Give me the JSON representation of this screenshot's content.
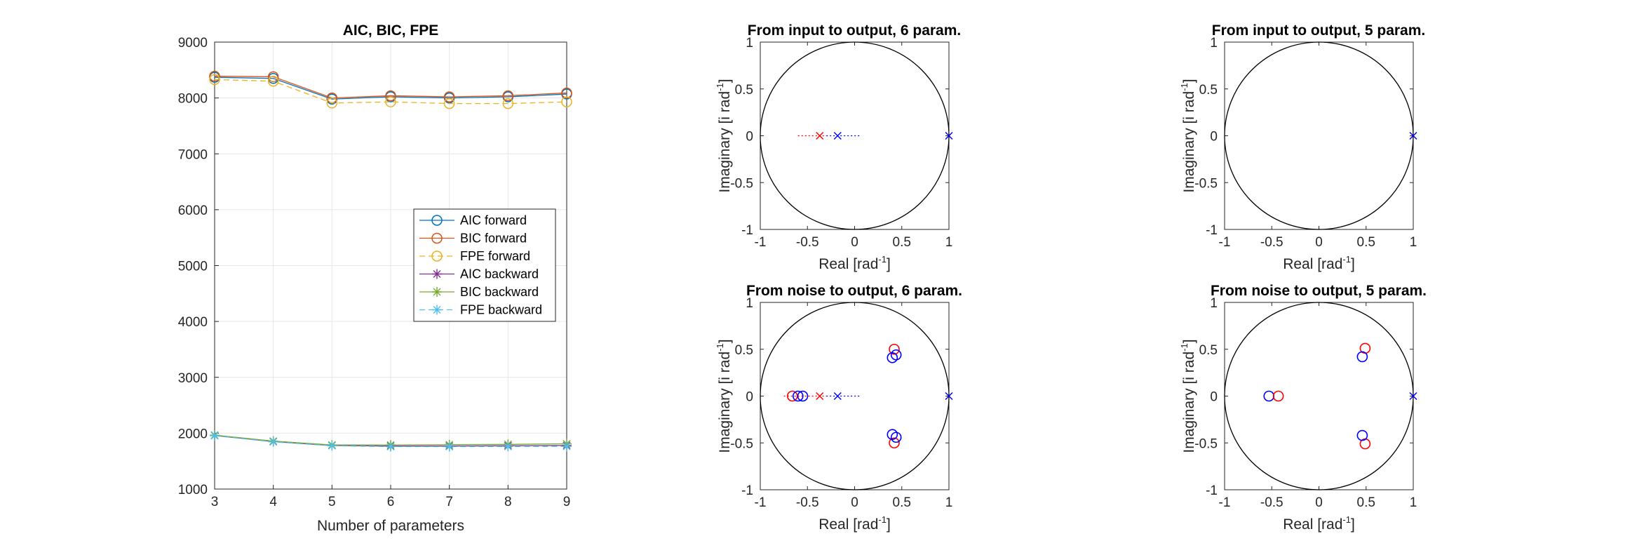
{
  "chart_data": [
    {
      "type": "line",
      "title": "AIC, BIC, FPE",
      "xlabel": "Number of parameters",
      "ylabel": "",
      "xlim": [
        3,
        9
      ],
      "ylim": [
        1000,
        9000
      ],
      "xticks": [
        "3",
        "4",
        "5",
        "6",
        "7",
        "8",
        "9"
      ],
      "yticks": [
        "1000",
        "2000",
        "3000",
        "4000",
        "5000",
        "6000",
        "7000",
        "8000",
        "9000"
      ],
      "grid": true,
      "legend": "center-right",
      "x": [
        3,
        4,
        5,
        6,
        7,
        8,
        9
      ],
      "series": [
        {
          "name": "AIC forward",
          "color": "#0072BD",
          "marker": "circle",
          "dash": "solid",
          "values": [
            8370,
            8350,
            7980,
            8020,
            8000,
            8020,
            8070
          ]
        },
        {
          "name": "BIC forward",
          "color": "#D95319",
          "marker": "circle",
          "dash": "solid",
          "values": [
            8390,
            8380,
            8000,
            8040,
            8020,
            8040,
            8090
          ]
        },
        {
          "name": "FPE forward",
          "color": "#EDB120",
          "marker": "circle",
          "dash": "dashed",
          "values": [
            8330,
            8300,
            7910,
            7930,
            7900,
            7900,
            7930
          ]
        },
        {
          "name": "AIC backward",
          "color": "#7E2F8E",
          "marker": "star",
          "dash": "solid",
          "values": [
            1960,
            1850,
            1780,
            1770,
            1770,
            1775,
            1780
          ]
        },
        {
          "name": "BIC backward",
          "color": "#77AC30",
          "marker": "star",
          "dash": "solid",
          "values": [
            1965,
            1858,
            1790,
            1790,
            1795,
            1800,
            1810
          ]
        },
        {
          "name": "FPE backward",
          "color": "#4DBEEE",
          "marker": "star",
          "dash": "dashed",
          "values": [
            1955,
            1845,
            1775,
            1760,
            1760,
            1762,
            1765
          ]
        }
      ]
    },
    {
      "type": "scatter",
      "title": "From input to output, 6 param.",
      "xlabel": "Real [rad",
      "xlabel_sup": "-1",
      "xlabel_end": "]",
      "ylabel": "Imaginary [i rad",
      "ylabel_sup": "-1",
      "ylabel_end": "]",
      "xlim": [
        -1,
        1
      ],
      "ylim": [
        -1,
        1
      ],
      "xticks": [
        "-1",
        "-0.5",
        "0",
        "0.5",
        "1"
      ],
      "yticks": [
        "-1",
        "-0.5",
        "0",
        "0.5",
        "1"
      ],
      "unit_circle": true,
      "lines": [
        {
          "color": "#FF0000",
          "x": [
            -0.6,
            -0.3
          ],
          "y": [
            0,
            0
          ]
        },
        {
          "color": "#0000FF",
          "x": [
            -0.3,
            0.05
          ],
          "y": [
            0,
            0
          ]
        }
      ],
      "poles": [
        {
          "color": "#FF0000",
          "x": -0.37,
          "y": 0
        },
        {
          "color": "#0000FF",
          "x": -0.18,
          "y": 0
        },
        {
          "color": "#0000FF",
          "x": 1.0,
          "y": 0
        }
      ],
      "zeros": []
    },
    {
      "type": "scatter",
      "title": "From input to output, 5 param.",
      "xlabel": "Real [rad",
      "xlabel_sup": "-1",
      "xlabel_end": "]",
      "ylabel": "Imaginary [i rad",
      "ylabel_sup": "-1",
      "ylabel_end": "]",
      "xlim": [
        -1,
        1
      ],
      "ylim": [
        -1,
        1
      ],
      "xticks": [
        "-1",
        "-0.5",
        "0",
        "0.5",
        "1"
      ],
      "yticks": [
        "-1",
        "-0.5",
        "0",
        "0.5",
        "1"
      ],
      "unit_circle": true,
      "lines": [],
      "poles": [
        {
          "color": "#0000FF",
          "x": 1.0,
          "y": 0
        }
      ],
      "zeros": []
    },
    {
      "type": "scatter",
      "title": "From noise to output, 6 param.",
      "xlabel": "Real [rad",
      "xlabel_sup": "-1",
      "xlabel_end": "]",
      "ylabel": "Imaginary [i rad",
      "ylabel_sup": "-1",
      "ylabel_end": "]",
      "xlim": [
        -1,
        1
      ],
      "ylim": [
        -1,
        1
      ],
      "xticks": [
        "-1",
        "-0.5",
        "0",
        "0.5",
        "1"
      ],
      "yticks": [
        "-1",
        "-0.5",
        "0",
        "0.5",
        "1"
      ],
      "unit_circle": true,
      "lines": [
        {
          "color": "#FF0000",
          "x": [
            -0.75,
            -0.3
          ],
          "y": [
            0,
            0
          ]
        },
        {
          "color": "#0000FF",
          "x": [
            -0.3,
            0.05
          ],
          "y": [
            0,
            0
          ]
        }
      ],
      "poles": [
        {
          "color": "#FF0000",
          "x": -0.37,
          "y": 0
        },
        {
          "color": "#0000FF",
          "x": -0.18,
          "y": 0
        },
        {
          "color": "#0000FF",
          "x": 1.0,
          "y": 0
        }
      ],
      "zeros": [
        {
          "color": "#FF0000",
          "x": -0.66,
          "y": 0
        },
        {
          "color": "#0000FF",
          "x": -0.6,
          "y": 0
        },
        {
          "color": "#0000FF",
          "x": -0.55,
          "y": 0
        },
        {
          "color": "#FF0000",
          "x": 0.42,
          "y": 0.5
        },
        {
          "color": "#FF0000",
          "x": 0.42,
          "y": -0.5
        },
        {
          "color": "#0000FF",
          "x": 0.4,
          "y": 0.41
        },
        {
          "color": "#0000FF",
          "x": 0.44,
          "y": 0.44
        },
        {
          "color": "#0000FF",
          "x": 0.4,
          "y": -0.41
        },
        {
          "color": "#0000FF",
          "x": 0.44,
          "y": -0.44
        }
      ]
    },
    {
      "type": "scatter",
      "title": "From noise to output, 5 param.",
      "xlabel": "Real [rad",
      "xlabel_sup": "-1",
      "xlabel_end": "]",
      "ylabel": "Imaginary [i rad",
      "ylabel_sup": "-1",
      "ylabel_end": "]",
      "xlim": [
        -1,
        1
      ],
      "ylim": [
        -1,
        1
      ],
      "xticks": [
        "-1",
        "-0.5",
        "0",
        "0.5",
        "1"
      ],
      "yticks": [
        "-1",
        "-0.5",
        "0",
        "0.5",
        "1"
      ],
      "unit_circle": true,
      "lines": [],
      "poles": [
        {
          "color": "#0000FF",
          "x": 1.0,
          "y": 0
        }
      ],
      "zeros": [
        {
          "color": "#0000FF",
          "x": -0.53,
          "y": 0
        },
        {
          "color": "#FF0000",
          "x": -0.43,
          "y": 0
        },
        {
          "color": "#FF0000",
          "x": 0.49,
          "y": 0.51
        },
        {
          "color": "#0000FF",
          "x": 0.46,
          "y": 0.42
        },
        {
          "color": "#FF0000",
          "x": 0.49,
          "y": -0.51
        },
        {
          "color": "#0000FF",
          "x": 0.46,
          "y": -0.42
        }
      ]
    }
  ]
}
